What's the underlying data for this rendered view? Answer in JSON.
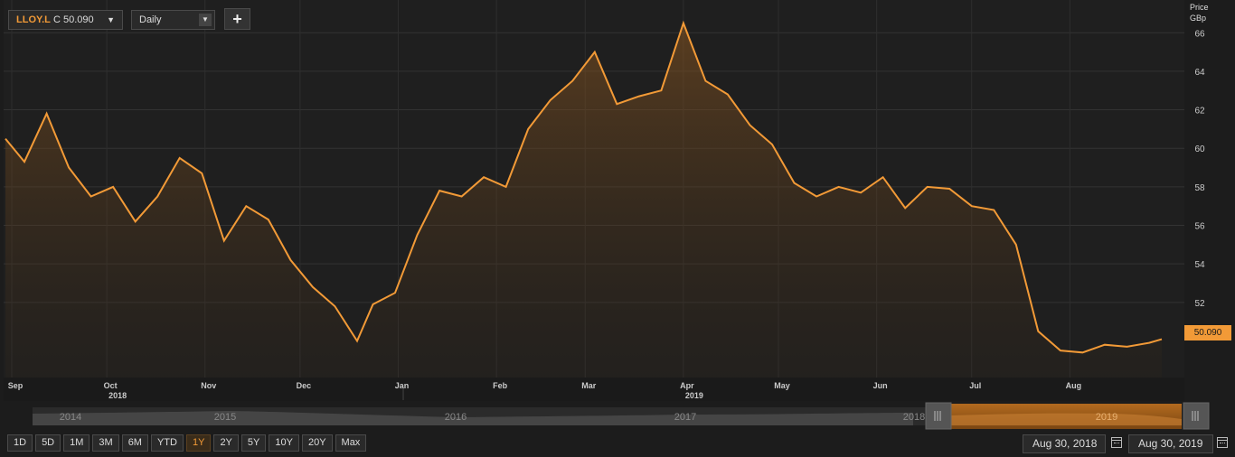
{
  "toolbar": {
    "ticker": "LLOY.L",
    "ticker_value": "C 50.090",
    "ticker_arrow": "▼",
    "frequency": "Daily",
    "frequency_arrow": "▼",
    "add_label": "+"
  },
  "axis_header": {
    "line1": "Price",
    "line2": "GBp"
  },
  "last_price": "50.090",
  "range_buttons": [
    "1D",
    "5D",
    "1M",
    "3M",
    "6M",
    "YTD",
    "1Y",
    "2Y",
    "5Y",
    "10Y",
    "20Y",
    "Max"
  ],
  "active_range": "1Y",
  "navigator": {
    "years": [
      "2014",
      "2015",
      "2016",
      "2017",
      "2018",
      "2019"
    ]
  },
  "date_range": {
    "start": "Aug 30, 2018",
    "end": "Aug 30, 2019"
  },
  "colors": {
    "line": "#f29a37",
    "background": "#1c1c1c",
    "grid": "#333333"
  },
  "chart_data": {
    "type": "area",
    "title": "",
    "xlabel": "",
    "ylabel": "Price GBp",
    "ylim": [
      48.1,
      67.7
    ],
    "y_ticks": [
      52,
      54,
      56,
      58,
      60,
      62,
      64,
      66
    ],
    "x_start": "2018-08-30",
    "x_end": "2019-08-30",
    "month_ticks": [
      {
        "label": "Sep",
        "date": "2018-09-01"
      },
      {
        "label": "Oct",
        "date": "2018-10-01"
      },
      {
        "label": "Nov",
        "date": "2018-11-01"
      },
      {
        "label": "Dec",
        "date": "2018-12-01"
      },
      {
        "label": "Jan",
        "date": "2019-01-01"
      },
      {
        "label": "Feb",
        "date": "2019-02-01"
      },
      {
        "label": "Mar",
        "date": "2019-03-01"
      },
      {
        "label": "Apr",
        "date": "2019-04-01"
      },
      {
        "label": "May",
        "date": "2019-05-01"
      },
      {
        "label": "Jun",
        "date": "2019-06-01"
      },
      {
        "label": "Jul",
        "date": "2019-07-01"
      },
      {
        "label": "Aug",
        "date": "2019-08-01"
      }
    ],
    "year_ticks": [
      {
        "label": "2018",
        "date": "2018-10-01"
      },
      {
        "label": "2019",
        "date": "2019-04-01"
      }
    ],
    "series": [
      {
        "x": [
          "2018-08-30",
          "2018-09-05",
          "2018-09-12",
          "2018-09-19",
          "2018-09-26",
          "2018-10-03",
          "2018-10-10",
          "2018-10-17",
          "2018-10-24",
          "2018-10-31",
          "2018-11-07",
          "2018-11-14",
          "2018-11-21",
          "2018-11-28",
          "2018-12-05",
          "2018-12-12",
          "2018-12-19",
          "2018-12-24",
          "2018-12-31",
          "2019-01-07",
          "2019-01-14",
          "2019-01-21",
          "2019-01-28",
          "2019-02-04",
          "2019-02-11",
          "2019-02-18",
          "2019-02-25",
          "2019-03-04",
          "2019-03-11",
          "2019-03-18",
          "2019-03-25",
          "2019-04-01",
          "2019-04-08",
          "2019-04-15",
          "2019-04-22",
          "2019-04-29",
          "2019-05-06",
          "2019-05-13",
          "2019-05-20",
          "2019-05-27",
          "2019-06-03",
          "2019-06-10",
          "2019-06-17",
          "2019-06-24",
          "2019-07-01",
          "2019-07-08",
          "2019-07-15",
          "2019-07-22",
          "2019-07-29",
          "2019-08-05",
          "2019-08-12",
          "2019-08-19",
          "2019-08-26",
          "2019-08-30"
        ],
        "y": [
          60.5,
          59.3,
          61.8,
          59.0,
          57.5,
          58.0,
          56.2,
          57.5,
          59.5,
          58.7,
          55.2,
          57.0,
          56.3,
          54.2,
          52.8,
          51.8,
          50.0,
          51.9,
          52.5,
          55.5,
          57.8,
          57.5,
          58.5,
          58.0,
          61.0,
          62.5,
          63.5,
          65.0,
          62.3,
          62.7,
          63.0,
          66.5,
          63.5,
          62.8,
          61.2,
          60.2,
          58.2,
          57.5,
          58.0,
          57.7,
          58.5,
          56.9,
          58.0,
          57.9,
          57.0,
          56.8,
          55.0,
          50.5,
          49.5,
          49.4,
          49.8,
          49.7,
          49.9,
          50.09
        ]
      }
    ]
  }
}
